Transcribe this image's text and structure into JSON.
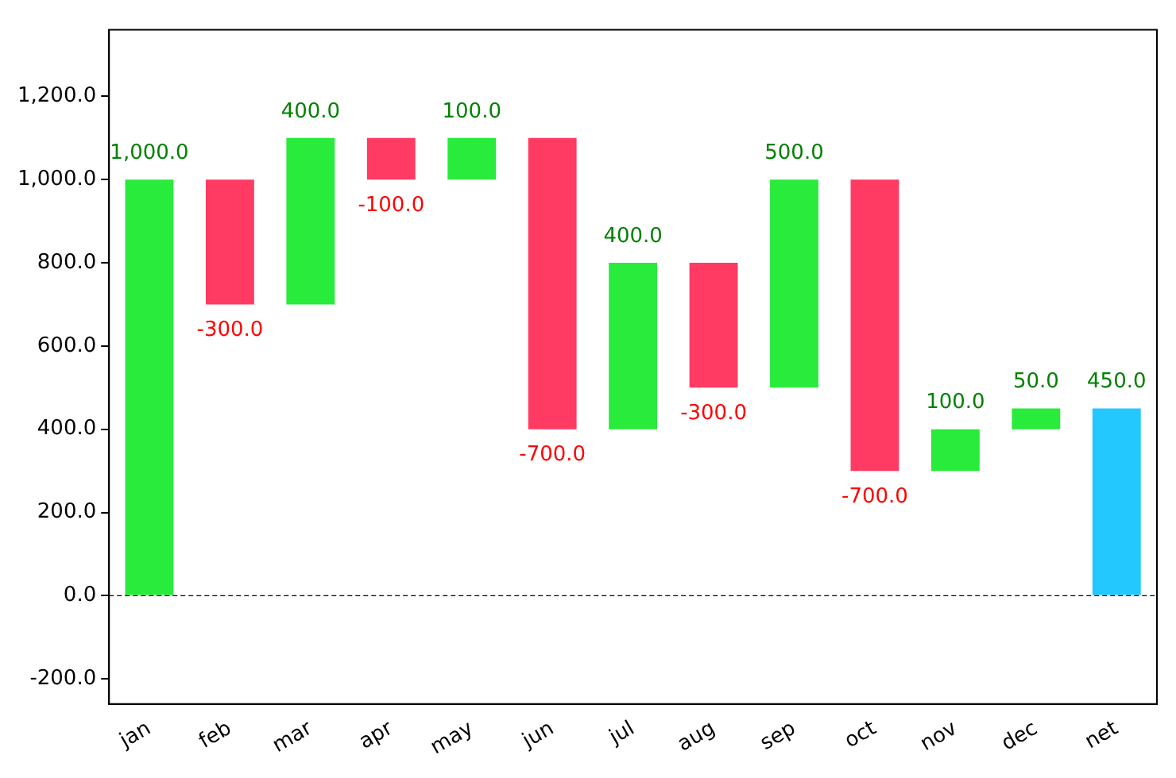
{
  "chart_data": {
    "type": "bar",
    "categories": [
      "jan",
      "feb",
      "mar",
      "apr",
      "may",
      "jun",
      "jul",
      "aug",
      "sep",
      "oct",
      "nov",
      "dec",
      "net"
    ],
    "values": [
      1000,
      -300,
      400,
      -100,
      100,
      -700,
      400,
      -300,
      500,
      -700,
      100,
      50,
      450
    ],
    "base": [
      0,
      1000,
      700,
      1100,
      1000,
      1100,
      400,
      800,
      500,
      1000,
      300,
      400,
      0
    ],
    "colors": [
      "#28eb3c",
      "#ff3b64",
      "#28eb3c",
      "#ff3b64",
      "#28eb3c",
      "#ff3b64",
      "#28eb3c",
      "#ff3b64",
      "#28eb3c",
      "#ff3b64",
      "#28eb3c",
      "#28eb3c",
      "#22c8ff"
    ],
    "value_labels": [
      "1,000.0",
      "-300.0",
      "400.0",
      "-100.0",
      "100.0",
      "-700.0",
      "400.0",
      "-300.0",
      "500.0",
      "-700.0",
      "100.0",
      "50.0",
      "450.0"
    ],
    "ylim": [
      -260,
      1360
    ],
    "yticks": [
      {
        "value": -200,
        "label": "-200.0"
      },
      {
        "value": 0,
        "label": "0.0"
      },
      {
        "value": 200,
        "label": "200.0"
      },
      {
        "value": 400,
        "label": "400.0"
      },
      {
        "value": 600,
        "label": "600.0"
      },
      {
        "value": 800,
        "label": "800.0"
      },
      {
        "value": 1000,
        "label": "1,000.0"
      },
      {
        "value": 1200,
        "label": "1,200.0"
      }
    ],
    "ref_lines": [
      {
        "axis": "y",
        "value": 0,
        "color": "#000000",
        "line_style": "dashed"
      }
    ],
    "grid": false,
    "legend": false
  }
}
